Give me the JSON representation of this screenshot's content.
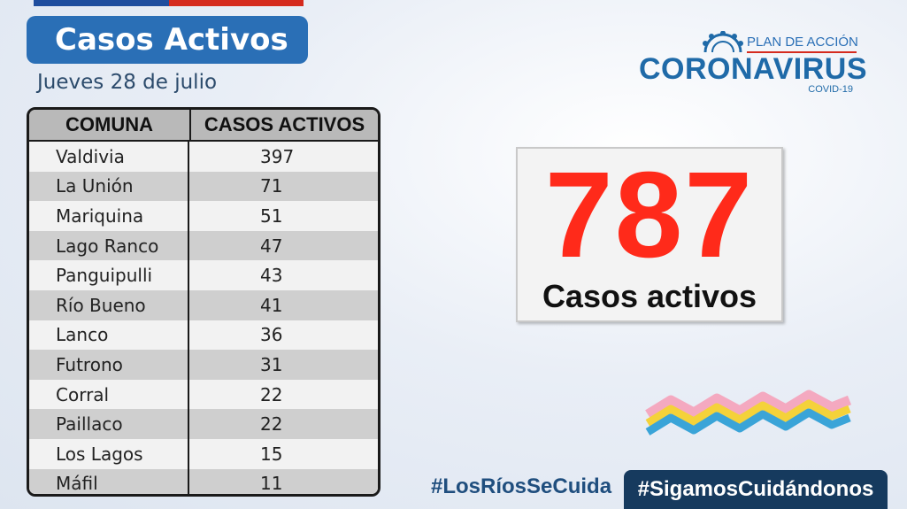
{
  "header": {
    "title": "Casos Activos",
    "date": "Jueves 28 de julio"
  },
  "table": {
    "headers": [
      "COMUNA",
      "CASOS ACTIVOS"
    ],
    "rows": [
      {
        "comuna": "Valdivia",
        "casos": "397"
      },
      {
        "comuna": "La Unión",
        "casos": "71"
      },
      {
        "comuna": "Mariquina",
        "casos": "51"
      },
      {
        "comuna": "Lago Ranco",
        "casos": "47"
      },
      {
        "comuna": "Panguipulli",
        "casos": "43"
      },
      {
        "comuna": "Río Bueno",
        "casos": "41"
      },
      {
        "comuna": "Lanco",
        "casos": "36"
      },
      {
        "comuna": "Futrono",
        "casos": "31"
      },
      {
        "comuna": "Corral",
        "casos": "22"
      },
      {
        "comuna": "Paillaco",
        "casos": "22"
      },
      {
        "comuna": "Los Lagos",
        "casos": "15"
      },
      {
        "comuna": "Máfil",
        "casos": "11"
      }
    ]
  },
  "logo": {
    "plan": "PLAN DE ACCIÓN",
    "name": "CORONAVIRUS",
    "sub": "COVID-19",
    "icon": "virus-icon"
  },
  "total": {
    "value": "787",
    "label": "Casos activos",
    "color": "#ff2a1a"
  },
  "footer": {
    "hashtag1": "#LosRíosSeCuida",
    "hashtag2": "#SigamosCuidándonos"
  },
  "colors": {
    "brand_blue": "#2a6fb6",
    "dark_navy": "#163a5e",
    "flag_red": "#d52b1e"
  }
}
